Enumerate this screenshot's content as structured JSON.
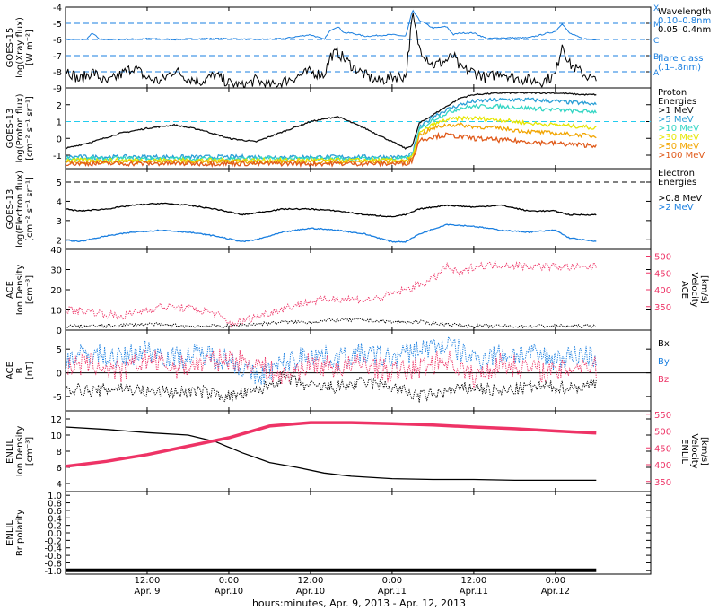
{
  "colors": {
    "black": "#000000",
    "blue": "#1a7fe0",
    "pink": "#ee3366",
    "cyan": "#22ccee",
    "p1": "#111111",
    "p5": "#2a9fd6",
    "p10": "#33d6c4",
    "p30": "#e6e600",
    "p50": "#f2a500",
    "p100": "#e05a1a"
  },
  "footer": {
    "xlabel": "hours:minutes, Apr.  9, 2013 - Apr. 12, 2013",
    "ticks": [
      {
        "time": "12:00",
        "date": "Apr. 9",
        "hour": 12
      },
      {
        "time": "0:00",
        "date": "Apr.10",
        "hour": 24
      },
      {
        "time": "12:00",
        "date": "Apr.10",
        "hour": 36
      },
      {
        "time": "0:00",
        "date": "Apr.11",
        "hour": 48
      },
      {
        "time": "12:00",
        "date": "Apr.11",
        "hour": 60
      },
      {
        "time": "0:00",
        "date": "Apr.12",
        "hour": 72
      }
    ]
  },
  "chart_data": [
    {
      "type": "line",
      "id": "xray",
      "ylabel": [
        "GOES-15",
        "log(Xray flux)",
        "[W m⁻²]"
      ],
      "ylim": [
        -9,
        -4
      ],
      "yticks": [
        -9,
        -8,
        -7,
        -6,
        -5,
        -4
      ],
      "flare_levels": [
        {
          "label": "A",
          "value": -8
        },
        {
          "label": "B",
          "value": -7
        },
        {
          "label": "C",
          "value": -6
        },
        {
          "label": "M",
          "value": -5
        },
        {
          "label": "X",
          "value": -4
        }
      ],
      "legend": [
        {
          "text": "Wavelength",
          "color": "black"
        },
        {
          "text": "0.10–0.8nm",
          "color": "blue"
        },
        {
          "text": "0.05–0.4nm",
          "color": "black"
        },
        {
          "text": "flare class",
          "color": "blue"
        },
        {
          "text": "(.1–.8nm)",
          "color": "blue"
        }
      ],
      "series": [
        {
          "name": "0.10–0.8nm",
          "color": "blue",
          "x": [
            0,
            3,
            4,
            5,
            8,
            12,
            16,
            20,
            24,
            28,
            32,
            36,
            38,
            39,
            40,
            41,
            42,
            44,
            48,
            50,
            51,
            52,
            54,
            56,
            57,
            58,
            60,
            62,
            64,
            68,
            72,
            73,
            74,
            76,
            78
          ],
          "y": [
            -6.0,
            -6.0,
            -5.6,
            -6.0,
            -6.0,
            -5.95,
            -6.0,
            -5.95,
            -5.95,
            -6.0,
            -5.95,
            -5.7,
            -6.0,
            -5.4,
            -5.2,
            -5.6,
            -5.6,
            -5.8,
            -5.7,
            -5.8,
            -4.2,
            -4.8,
            -5.3,
            -5.2,
            -5.7,
            -5.6,
            -5.6,
            -5.95,
            -5.9,
            -5.9,
            -5.5,
            -5.0,
            -5.6,
            -5.95,
            -6.0
          ]
        },
        {
          "name": "0.05–0.4nm",
          "color": "black",
          "x": [
            0,
            2,
            4,
            6,
            8,
            10,
            12,
            14,
            16,
            18,
            20,
            22,
            24,
            26,
            28,
            30,
            32,
            34,
            36,
            38,
            39,
            40,
            41,
            42,
            44,
            46,
            48,
            50,
            51,
            52,
            54,
            56,
            57,
            58,
            60,
            62,
            64,
            66,
            68,
            70,
            72,
            73,
            74,
            76,
            78
          ],
          "y": [
            -7.8,
            -8.5,
            -8.0,
            -8.7,
            -8.2,
            -7.7,
            -8.4,
            -8.6,
            -7.9,
            -8.4,
            -8.6,
            -8.2,
            -8.7,
            -8.9,
            -8.5,
            -8.9,
            -8.6,
            -8.3,
            -8.0,
            -8.2,
            -7.0,
            -6.8,
            -7.2,
            -7.6,
            -8.2,
            -8.6,
            -8.3,
            -8.3,
            -4.5,
            -6.5,
            -7.6,
            -7.3,
            -7.0,
            -7.8,
            -8.0,
            -8.4,
            -8.0,
            -8.4,
            -8.5,
            -8.6,
            -8.2,
            -6.2,
            -7.5,
            -8.1,
            -8.6
          ]
        }
      ]
    },
    {
      "type": "line",
      "id": "proton",
      "ylabel": [
        "GOES-13",
        "log(Proton flux)",
        "[cm⁻² s⁻¹ sr⁻¹]"
      ],
      "ylim": [
        -1.8,
        3
      ],
      "yticks": [
        -1,
        0,
        1,
        2
      ],
      "threshold": 1,
      "legend": [
        {
          "text": "Proton",
          "color": "black"
        },
        {
          "text": "Energies",
          "color": "black"
        },
        {
          "text": ">1 MeV",
          "color": "p1"
        },
        {
          "text": ">5 MeV",
          "color": "p5"
        },
        {
          "text": ">10 MeV",
          "color": "p10"
        },
        {
          "text": ">30 MeV",
          "color": "p30"
        },
        {
          "text": ">50 MeV",
          "color": "p50"
        },
        {
          "text": ">100 MeV",
          "color": "p100"
        }
      ],
      "series": [
        {
          "name": ">1 MeV",
          "color": "p1",
          "x": [
            0,
            4,
            8,
            12,
            16,
            20,
            24,
            28,
            32,
            36,
            40,
            44,
            48,
            50,
            51,
            52,
            54,
            56,
            58,
            60,
            64,
            68,
            72,
            76,
            78
          ],
          "y": [
            -0.6,
            -0.2,
            0.3,
            0.6,
            0.8,
            0.5,
            0.0,
            -0.2,
            0.4,
            1.0,
            1.3,
            0.6,
            -0.2,
            -0.6,
            -0.4,
            0.9,
            1.4,
            1.9,
            2.4,
            2.6,
            2.7,
            2.7,
            2.7,
            2.6,
            2.6
          ]
        },
        {
          "name": ">5 MeV",
          "color": "p5",
          "x": [
            0,
            50,
            51,
            52,
            54,
            56,
            58,
            60,
            64,
            68,
            72,
            76,
            78
          ],
          "y": [
            -1.1,
            -1.1,
            -0.9,
            0.6,
            1.3,
            1.7,
            2.0,
            2.2,
            2.3,
            2.3,
            2.2,
            2.1,
            2.0
          ]
        },
        {
          "name": ">10 MeV",
          "color": "p10",
          "x": [
            0,
            50,
            51,
            52,
            54,
            56,
            58,
            60,
            64,
            68,
            72,
            76,
            78
          ],
          "y": [
            -1.2,
            -1.2,
            -1.0,
            0.5,
            1.1,
            1.5,
            1.8,
            1.9,
            1.9,
            1.8,
            1.7,
            1.6,
            1.6
          ]
        },
        {
          "name": ">30 MeV",
          "color": "p30",
          "x": [
            0,
            50,
            51,
            52,
            54,
            56,
            58,
            60,
            64,
            68,
            72,
            76,
            78
          ],
          "y": [
            -1.3,
            -1.3,
            -1.1,
            0.3,
            0.8,
            1.1,
            1.2,
            1.2,
            1.1,
            0.9,
            0.8,
            0.7,
            0.6
          ]
        },
        {
          "name": ">50 MeV",
          "color": "p50",
          "x": [
            0,
            50,
            51,
            52,
            54,
            56,
            58,
            60,
            64,
            68,
            72,
            76,
            78
          ],
          "y": [
            -1.4,
            -1.4,
            -1.2,
            0.2,
            0.6,
            0.8,
            0.8,
            0.7,
            0.6,
            0.4,
            0.3,
            0.2,
            0.1
          ]
        },
        {
          "name": ">100 MeV",
          "color": "p100",
          "x": [
            0,
            50,
            51,
            52,
            54,
            56,
            58,
            60,
            64,
            68,
            72,
            76,
            78
          ],
          "y": [
            -1.5,
            -1.5,
            -1.3,
            -0.1,
            0.1,
            0.2,
            0.1,
            0.0,
            -0.1,
            -0.2,
            -0.3,
            -0.4,
            -0.4
          ]
        }
      ]
    },
    {
      "type": "line",
      "id": "electron",
      "ylabel": [
        "GOES-13",
        "log(Electron flux)",
        "[cm⁻² s⁻¹ sr⁻¹]"
      ],
      "ylim": [
        1.5,
        5.7
      ],
      "yticks": [
        2,
        3,
        4,
        5
      ],
      "threshold": 5,
      "legend": [
        {
          "text": "Electron",
          "color": "black"
        },
        {
          "text": "Energies",
          "color": "black"
        },
        {
          "text": ">0.8 MeV",
          "color": "black"
        },
        {
          "text": ">2 MeV",
          "color": "blue"
        }
      ],
      "series": [
        {
          "name": ">0.8 MeV",
          "color": "black",
          "x": [
            0,
            2,
            6,
            10,
            14,
            18,
            22,
            26,
            28,
            32,
            36,
            40,
            44,
            48,
            50,
            52,
            56,
            60,
            64,
            68,
            72,
            74,
            76,
            78
          ],
          "y": [
            3.6,
            3.5,
            3.6,
            3.8,
            3.9,
            3.8,
            3.6,
            3.3,
            3.4,
            3.6,
            3.6,
            3.5,
            3.3,
            3.2,
            3.3,
            3.6,
            3.8,
            3.7,
            3.8,
            3.5,
            3.5,
            3.3,
            3.3,
            3.3
          ]
        },
        {
          "name": ">2 MeV",
          "color": "blue",
          "x": [
            0,
            2,
            6,
            10,
            14,
            18,
            22,
            26,
            28,
            32,
            36,
            40,
            44,
            48,
            50,
            52,
            56,
            60,
            64,
            68,
            72,
            74,
            76,
            78
          ],
          "y": [
            2.0,
            1.9,
            2.2,
            2.4,
            2.5,
            2.4,
            2.2,
            1.9,
            2.0,
            2.4,
            2.6,
            2.5,
            2.3,
            1.9,
            1.9,
            2.3,
            2.8,
            2.7,
            2.5,
            2.4,
            2.5,
            2.1,
            2.0,
            1.9
          ]
        }
      ]
    },
    {
      "type": "scatter",
      "id": "ace_plasma",
      "ylabel": [
        "ACE",
        "Ion Density",
        "[cm⁻³]"
      ],
      "ylabel_right": [
        "ACE",
        "Velocity",
        "[km/s]"
      ],
      "ylim": [
        0,
        40
      ],
      "yticks": [
        0,
        10,
        20,
        30,
        40
      ],
      "ylim_right": [
        280,
        520
      ],
      "yticks_right": [
        350,
        400,
        450,
        500
      ],
      "series": [
        {
          "name": "Ion Density",
          "color": "black",
          "x": [
            0,
            6,
            12,
            18,
            24,
            28,
            32,
            36,
            40,
            44,
            48,
            52,
            56,
            60,
            64,
            68,
            72,
            78
          ],
          "y": [
            2,
            2,
            3,
            2,
            2,
            3,
            4,
            4,
            5,
            5,
            4,
            4,
            3,
            2,
            2,
            2,
            2,
            2
          ]
        },
        {
          "name": "Velocity",
          "color": "pink",
          "x": [
            0,
            4,
            8,
            10,
            14,
            18,
            22,
            24,
            26,
            28,
            32,
            36,
            40,
            44,
            46,
            50,
            54,
            56,
            58,
            60,
            64,
            68,
            72,
            76,
            78
          ],
          "y": [
            340,
            335,
            320,
            330,
            350,
            345,
            330,
            300,
            305,
            320,
            345,
            365,
            375,
            370,
            375,
            400,
            430,
            470,
            445,
            470,
            475,
            470,
            470,
            465,
            470
          ]
        }
      ]
    },
    {
      "type": "scatter",
      "id": "ace_b",
      "ylabel": [
        "ACE",
        "B",
        "[nT]"
      ],
      "ylim": [
        -8,
        9
      ],
      "yticks": [
        -5,
        0,
        5
      ],
      "legend": [
        {
          "text": "Bx",
          "color": "black"
        },
        {
          "text": "By",
          "color": "blue"
        },
        {
          "text": "Bz",
          "color": "pink"
        }
      ],
      "series": [
        {
          "name": "Bx",
          "color": "black",
          "x": [
            0,
            4,
            8,
            12,
            16,
            20,
            24,
            28,
            32,
            36,
            40,
            44,
            48,
            52,
            56,
            60,
            64,
            68,
            72,
            76,
            78
          ],
          "y": [
            -3,
            -4,
            -3,
            -4,
            -4,
            -4,
            -5,
            -4,
            -1,
            -3,
            -3,
            -2,
            -3,
            -5,
            -4,
            -3,
            -4,
            -3,
            -3,
            -3,
            -2
          ]
        },
        {
          "name": "By",
          "color": "blue",
          "x": [
            0,
            4,
            8,
            12,
            16,
            20,
            24,
            28,
            32,
            36,
            40,
            44,
            48,
            52,
            56,
            60,
            64,
            68,
            72,
            76,
            78
          ],
          "y": [
            3,
            4,
            3,
            5,
            3,
            4,
            3,
            -1,
            2,
            4,
            3,
            4,
            3,
            5,
            6,
            3,
            4,
            4,
            3,
            4,
            3
          ]
        },
        {
          "name": "Bz",
          "color": "pink",
          "x": [
            0,
            4,
            8,
            12,
            16,
            20,
            24,
            28,
            32,
            36,
            40,
            44,
            48,
            52,
            56,
            60,
            64,
            68,
            72,
            76,
            78
          ],
          "y": [
            1,
            2,
            0,
            3,
            1,
            2,
            3,
            2,
            -1,
            2,
            1,
            2,
            0,
            1,
            3,
            -1,
            2,
            1,
            0,
            2,
            1
          ]
        }
      ]
    },
    {
      "type": "line",
      "id": "enlil_plasma",
      "ylabel": [
        "ENLIL",
        "Ion Density",
        "[cm⁻³]"
      ],
      "ylabel_right": [
        "ENLIL",
        "Velocity",
        "[km/s]"
      ],
      "ylim": [
        3,
        13
      ],
      "yticks": [
        4,
        6,
        8,
        10,
        12
      ],
      "ylim_right": [
        320,
        560
      ],
      "yticks_right": [
        350,
        400,
        450,
        500,
        550
      ],
      "series": [
        {
          "name": "Ion Density",
          "color": "black",
          "x": [
            0,
            6,
            12,
            18,
            22,
            26,
            30,
            34,
            38,
            42,
            48,
            54,
            60,
            66,
            72,
            78
          ],
          "y": [
            11.0,
            10.7,
            10.3,
            10.0,
            9.2,
            7.8,
            6.6,
            6.0,
            5.3,
            4.9,
            4.6,
            4.5,
            4.5,
            4.4,
            4.4,
            4.4
          ]
        },
        {
          "name": "Velocity",
          "color": "pink",
          "x": [
            0,
            6,
            12,
            18,
            24,
            30,
            36,
            42,
            48,
            54,
            60,
            66,
            72,
            78
          ],
          "y": [
            395,
            410,
            430,
            455,
            480,
            515,
            525,
            525,
            522,
            518,
            512,
            507,
            500,
            494
          ]
        }
      ]
    },
    {
      "type": "line",
      "id": "enlil_polarity",
      "ylabel": [
        "ENLIL",
        "Br polarity"
      ],
      "ylim": [
        -1.1,
        1.1
      ],
      "yticks": [
        -1.0,
        -0.8,
        -0.6,
        -0.4,
        -0.2,
        0.0,
        0.2,
        0.4,
        0.6,
        0.8,
        1.0
      ],
      "series": [
        {
          "name": "Br polarity",
          "color": "black",
          "x": [
            0,
            78
          ],
          "y": [
            -1.0,
            -1.0
          ]
        }
      ]
    }
  ]
}
